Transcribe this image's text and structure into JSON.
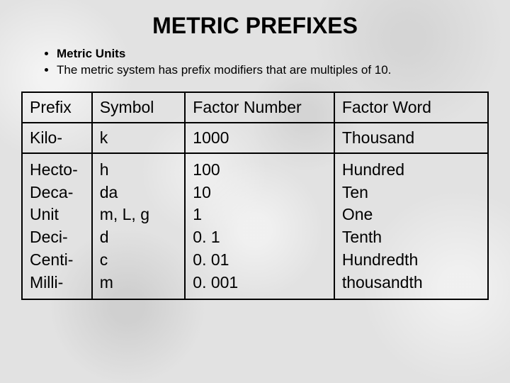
{
  "title": {
    "text": "METRIC PREFIXES",
    "fontsize": 32,
    "weight": "bold"
  },
  "bullets": [
    {
      "text": "Metric Units",
      "bold": true
    },
    {
      "text": "The metric system has prefix modifiers that are multiples of 10.",
      "bold": false
    }
  ],
  "bullet_fontsize": 17,
  "table": {
    "cell_fontsize": 23,
    "border_color": "#000000",
    "border_width": 2,
    "col_widths_pct": [
      15,
      20,
      32,
      33
    ],
    "header": [
      "Prefix",
      "Symbol",
      "Factor Number",
      "Factor Word"
    ],
    "row1": [
      "Kilo-",
      "k",
      "1000",
      "Thousand"
    ],
    "block": {
      "prefix": [
        "Hecto-",
        "Deca-",
        "Unit",
        "Deci-",
        "Centi-",
        "Milli-"
      ],
      "symbol": [
        "h",
        "da",
        "m, L, g",
        "d",
        "c",
        "m"
      ],
      "factor": [
        "100",
        "10",
        "1",
        "0. 1",
        "0. 01",
        "0. 001"
      ],
      "word": [
        "Hundred",
        "Ten",
        "One",
        "Tenth",
        "Hundredth",
        "thousandth"
      ]
    }
  },
  "background_base": "#e2e2e2"
}
